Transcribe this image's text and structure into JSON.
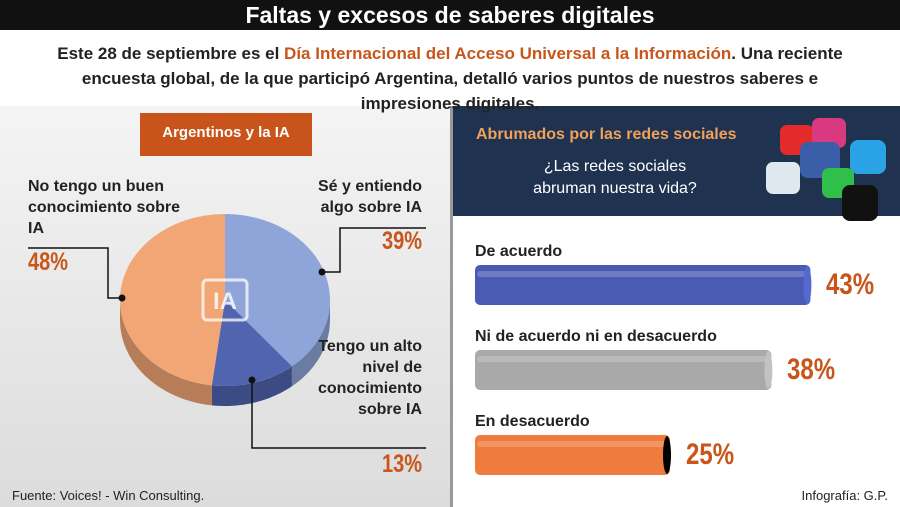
{
  "title": "Faltas y excesos de saberes digitales",
  "intro": [
    "Este 28 de septiembre es el ",
    "Día Internacional del Acceso Universal a la Información",
    ". Una reciente encuesta global, de la que participó Argentina, detalló varios puntos de nuestros saberes e impresiones digitales."
  ],
  "source": "Fuente: Voices! - Win Consulting.",
  "credit": "Infografía: G.P.",
  "chart_data": [
    {
      "type": "pie",
      "title": "Argentinos y la IA",
      "icon_text": "IA",
      "categories": [
        "Sé y entiendo algo sobre IA",
        "Tengo un alto nivel de conocimiento sobre IA",
        "No tengo un buen conocimiento sobre IA"
      ],
      "values": [
        39,
        13,
        48
      ],
      "value_labels": [
        "39%",
        "13%",
        "48%"
      ],
      "colors": [
        "#8fa5d9",
        "#5064b0",
        "#f2a675"
      ]
    },
    {
      "type": "bar",
      "title": "Abrumados por las redes sociales",
      "subtitle": "¿Las redes sociales abruman nuestra vida?",
      "categories": [
        "De acuerdo",
        "Ni de acuerdo ni en desacuerdo",
        "En desacuerdo"
      ],
      "values": [
        43,
        38,
        25
      ],
      "value_labels": [
        "43%",
        "38%",
        "25%"
      ],
      "colors": [
        "#4a5bb3",
        "#a9a9a9",
        "#ef7b3e"
      ]
    }
  ]
}
